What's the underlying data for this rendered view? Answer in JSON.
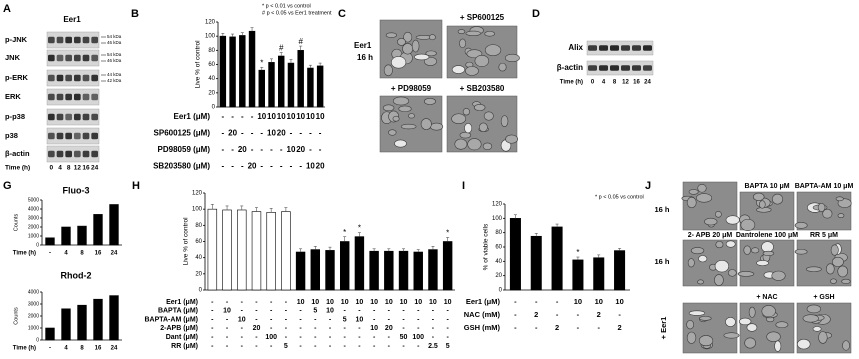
{
  "panel_a": {
    "label": "A",
    "title": "Eer1",
    "rows": [
      {
        "name": "p-JNK",
        "markers": [
          "54 kDa",
          "46 kDa"
        ]
      },
      {
        "name": "JNK",
        "markers": [
          "54 kDa",
          "46 kDa"
        ]
      },
      {
        "name": "p-ERK",
        "markers": [
          "44 kDa",
          "42 kDa"
        ]
      },
      {
        "name": "ERK"
      },
      {
        "name": "p-p38"
      },
      {
        "name": "p38"
      },
      {
        "name": "β-actin"
      }
    ],
    "time_label": "Time (h)",
    "times": [
      "0",
      "4",
      "8",
      "12",
      "16",
      "24"
    ]
  },
  "panel_b": {
    "label": "B",
    "notes": [
      "* p < 0.01 vs control",
      "# p < 0.05 vs Eer1 treatment"
    ],
    "y_label": "Live % of control",
    "ylim": [
      0,
      120
    ],
    "yticks": [
      0,
      20,
      40,
      60,
      80,
      100,
      120
    ],
    "values": [
      100,
      99,
      101,
      107,
      52,
      63,
      72,
      62,
      80,
      55,
      58
    ],
    "errors": [
      4,
      4,
      4,
      5,
      4,
      5,
      5,
      5,
      6,
      4,
      4
    ],
    "annotations": [
      {
        "index": 4,
        "text": "*"
      },
      {
        "index": 6,
        "text": "#"
      },
      {
        "index": 8,
        "text": "#"
      }
    ],
    "table": [
      {
        "label": "Eer1 (μM)",
        "cells": [
          "-",
          "-",
          "-",
          "-",
          "10",
          "10",
          "10",
          "10",
          "10",
          "10",
          "10"
        ]
      },
      {
        "label": "SP600125 (μM)",
        "cells": [
          "-",
          "20",
          "-",
          "-",
          "-",
          "10",
          "20",
          "-",
          "-",
          "-",
          "-"
        ]
      },
      {
        "label": "PD98059 (μM)",
        "cells": [
          "-",
          "-",
          "20",
          "-",
          "-",
          "-",
          "-",
          "10",
          "20",
          "-",
          "-"
        ]
      },
      {
        "label": "SB203580 (μM)",
        "cells": [
          "-",
          "-",
          "-",
          "20",
          "-",
          "-",
          "-",
          "-",
          "-",
          "10",
          "20"
        ]
      }
    ]
  },
  "panel_c": {
    "label": "C",
    "side_label": [
      "Eer1",
      "16 h"
    ],
    "image_labels": [
      "+ SP600125",
      "+ PD98059",
      "+ SB203580"
    ]
  },
  "panel_d": {
    "label": "D",
    "rows": [
      "Alix",
      "β-actin"
    ],
    "time_label": "Time (h)",
    "times": [
      "0",
      "4",
      "8",
      "12",
      "16",
      "24"
    ]
  },
  "panel_g": {
    "label": "G",
    "charts": [
      {
        "title": "Fluo-3",
        "y_label": "Counts",
        "ylim": [
          0,
          5000
        ],
        "yticks": [
          0,
          1000,
          2000,
          3000,
          4000,
          5000
        ],
        "x_label": "Time (h)",
        "categories": [
          "-",
          "4",
          "8",
          "16",
          "24"
        ],
        "values": [
          800,
          2000,
          2100,
          3400,
          4500
        ]
      },
      {
        "title": "Rhod-2",
        "y_label": "Counts",
        "ylim": [
          0,
          4000
        ],
        "yticks": [
          0,
          1000,
          2000,
          3000,
          4000
        ],
        "x_label": "Time (h)",
        "categories": [
          "-",
          "4",
          "8",
          "16",
          "24"
        ],
        "values": [
          1000,
          2600,
          2900,
          3400,
          3700
        ]
      }
    ]
  },
  "panel_h": {
    "label": "H",
    "y_label": "Live % of control",
    "ylim": [
      0,
      120
    ],
    "yticks": [
      0,
      20,
      40,
      60,
      80,
      100,
      120
    ],
    "values": [
      100,
      99,
      99,
      97,
      96,
      97,
      47,
      50,
      49,
      60,
      66,
      48,
      48,
      48,
      47,
      50,
      60
    ],
    "errors": [
      6,
      5,
      5,
      5,
      5,
      5,
      4,
      4,
      4,
      6,
      5,
      3,
      3,
      3,
      3,
      4,
      5
    ],
    "fills": [
      "#ffffff",
      "#ffffff",
      "#ffffff",
      "#ffffff",
      "#ffffff",
      "#ffffff",
      "#000000",
      "#000000",
      "#000000",
      "#000000",
      "#000000",
      "#000000",
      "#000000",
      "#000000",
      "#000000",
      "#000000",
      "#000000"
    ],
    "annotations": [
      {
        "index": 9,
        "text": "*"
      },
      {
        "index": 10,
        "text": "*"
      },
      {
        "index": 16,
        "text": "*"
      }
    ],
    "table": [
      {
        "label": "Eer1 (μM)",
        "cells": [
          "-",
          "-",
          "-",
          "-",
          "-",
          "-",
          "10",
          "10",
          "10",
          "10",
          "10",
          "10",
          "10",
          "10",
          "10",
          "10",
          "10"
        ]
      },
      {
        "label": "BAPTA (μM)",
        "cells": [
          "-",
          "10",
          "-",
          "-",
          "-",
          "-",
          "-",
          "5",
          "10",
          "-",
          "-",
          "-",
          "-",
          "-",
          "-",
          "-",
          "-"
        ]
      },
      {
        "label": "BAPTA-AM (μM)",
        "cells": [
          "-",
          "-",
          "10",
          "-",
          "-",
          "-",
          "-",
          "-",
          "-",
          "5",
          "10",
          "-",
          "-",
          "-",
          "-",
          "-",
          "-"
        ]
      },
      {
        "label": "2-APB (μM)",
        "cells": [
          "-",
          "-",
          "-",
          "20",
          "-",
          "-",
          "-",
          "-",
          "-",
          "-",
          "-",
          "10",
          "20",
          "-",
          "-",
          "-",
          "-"
        ]
      },
      {
        "label": "Dant (μM)",
        "cells": [
          "-",
          "-",
          "-",
          "-",
          "100",
          "-",
          "-",
          "-",
          "-",
          "-",
          "-",
          "-",
          "-",
          "50",
          "100",
          "-",
          "-"
        ]
      },
      {
        "label": "RR (μM)",
        "cells": [
          "-",
          "-",
          "-",
          "-",
          "-",
          "5",
          "-",
          "-",
          "-",
          "-",
          "-",
          "-",
          "-",
          "-",
          "-",
          "2.5",
          "5"
        ]
      }
    ]
  },
  "panel_i": {
    "label": "I",
    "notes": [
      "* p < 0.05 vs control"
    ],
    "y_label": "% of viable cells",
    "ylim": [
      0,
      120
    ],
    "yticks": [
      0,
      20,
      40,
      60,
      80,
      100,
      120
    ],
    "values": [
      100,
      75,
      88,
      42,
      45,
      55
    ],
    "errors": [
      5,
      4,
      4,
      4,
      4,
      3
    ],
    "annotations": [
      {
        "index": 3,
        "text": "*"
      }
    ],
    "table": [
      {
        "label": "Eer1 (μM)",
        "cells": [
          "-",
          "-",
          "-",
          "10",
          "10",
          "10"
        ]
      },
      {
        "label": "NAC (mM)",
        "cells": [
          "-",
          "2",
          "-",
          "-",
          "2",
          "-"
        ]
      },
      {
        "label": "GSH (mM)",
        "cells": [
          "-",
          "-",
          "2",
          "-",
          "-",
          "2"
        ]
      }
    ]
  },
  "panel_j": {
    "label": "J",
    "row_labels": [
      "16 h",
      "16 h"
    ],
    "image_labels": [
      "BAPTA 10 μM",
      "BAPTA-AM 10 μM",
      "2- APB 20 μM",
      "Dantrolene 100 μM",
      "RR 5 μM",
      "+ NAC",
      "+ GSH"
    ],
    "bottom_label": "+ Eer1"
  }
}
